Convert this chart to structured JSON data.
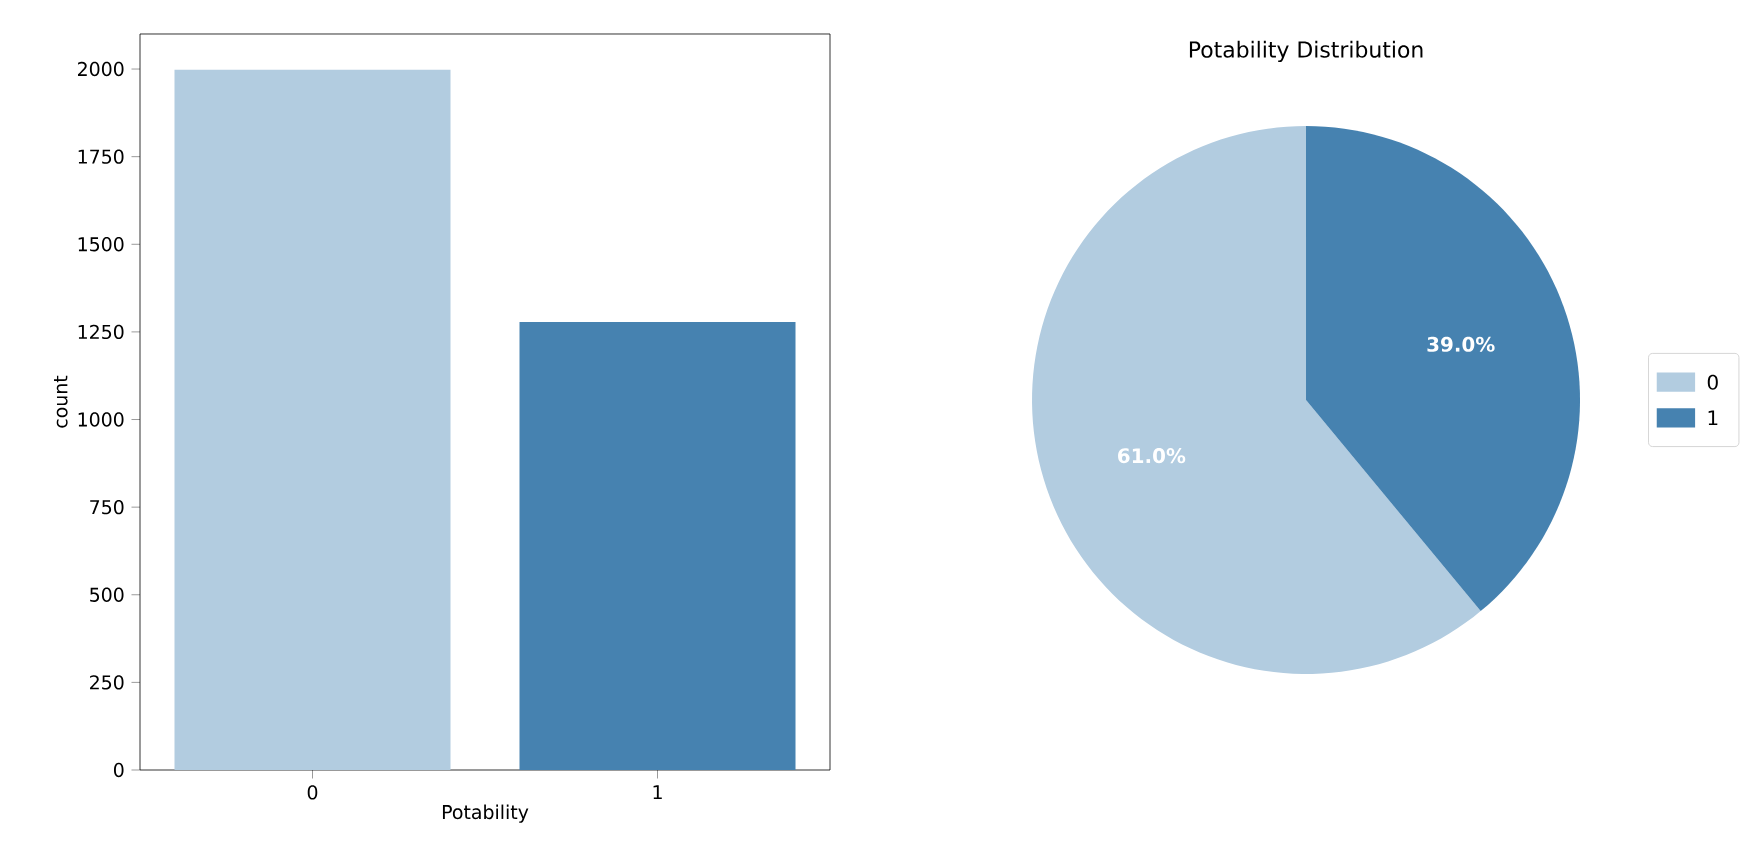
{
  "chart_data": [
    {
      "type": "bar",
      "categories": [
        "0",
        "1"
      ],
      "values": [
        1998,
        1278
      ],
      "colors": [
        "#b2cce0",
        "#4682b0"
      ],
      "xlabel": "Potability",
      "ylabel": "count",
      "ylim": [
        0,
        2100
      ],
      "yticks": [
        0,
        250,
        500,
        750,
        1000,
        1250,
        1500,
        1750,
        2000
      ]
    },
    {
      "type": "pie",
      "title": "Potability Distribution",
      "categories": [
        "0",
        "1"
      ],
      "values": [
        61.0,
        39.0
      ],
      "colors": [
        "#b2cce0",
        "#4682b0"
      ],
      "value_labels": [
        "61.0%",
        "39.0%"
      ],
      "legend": "right"
    }
  ]
}
